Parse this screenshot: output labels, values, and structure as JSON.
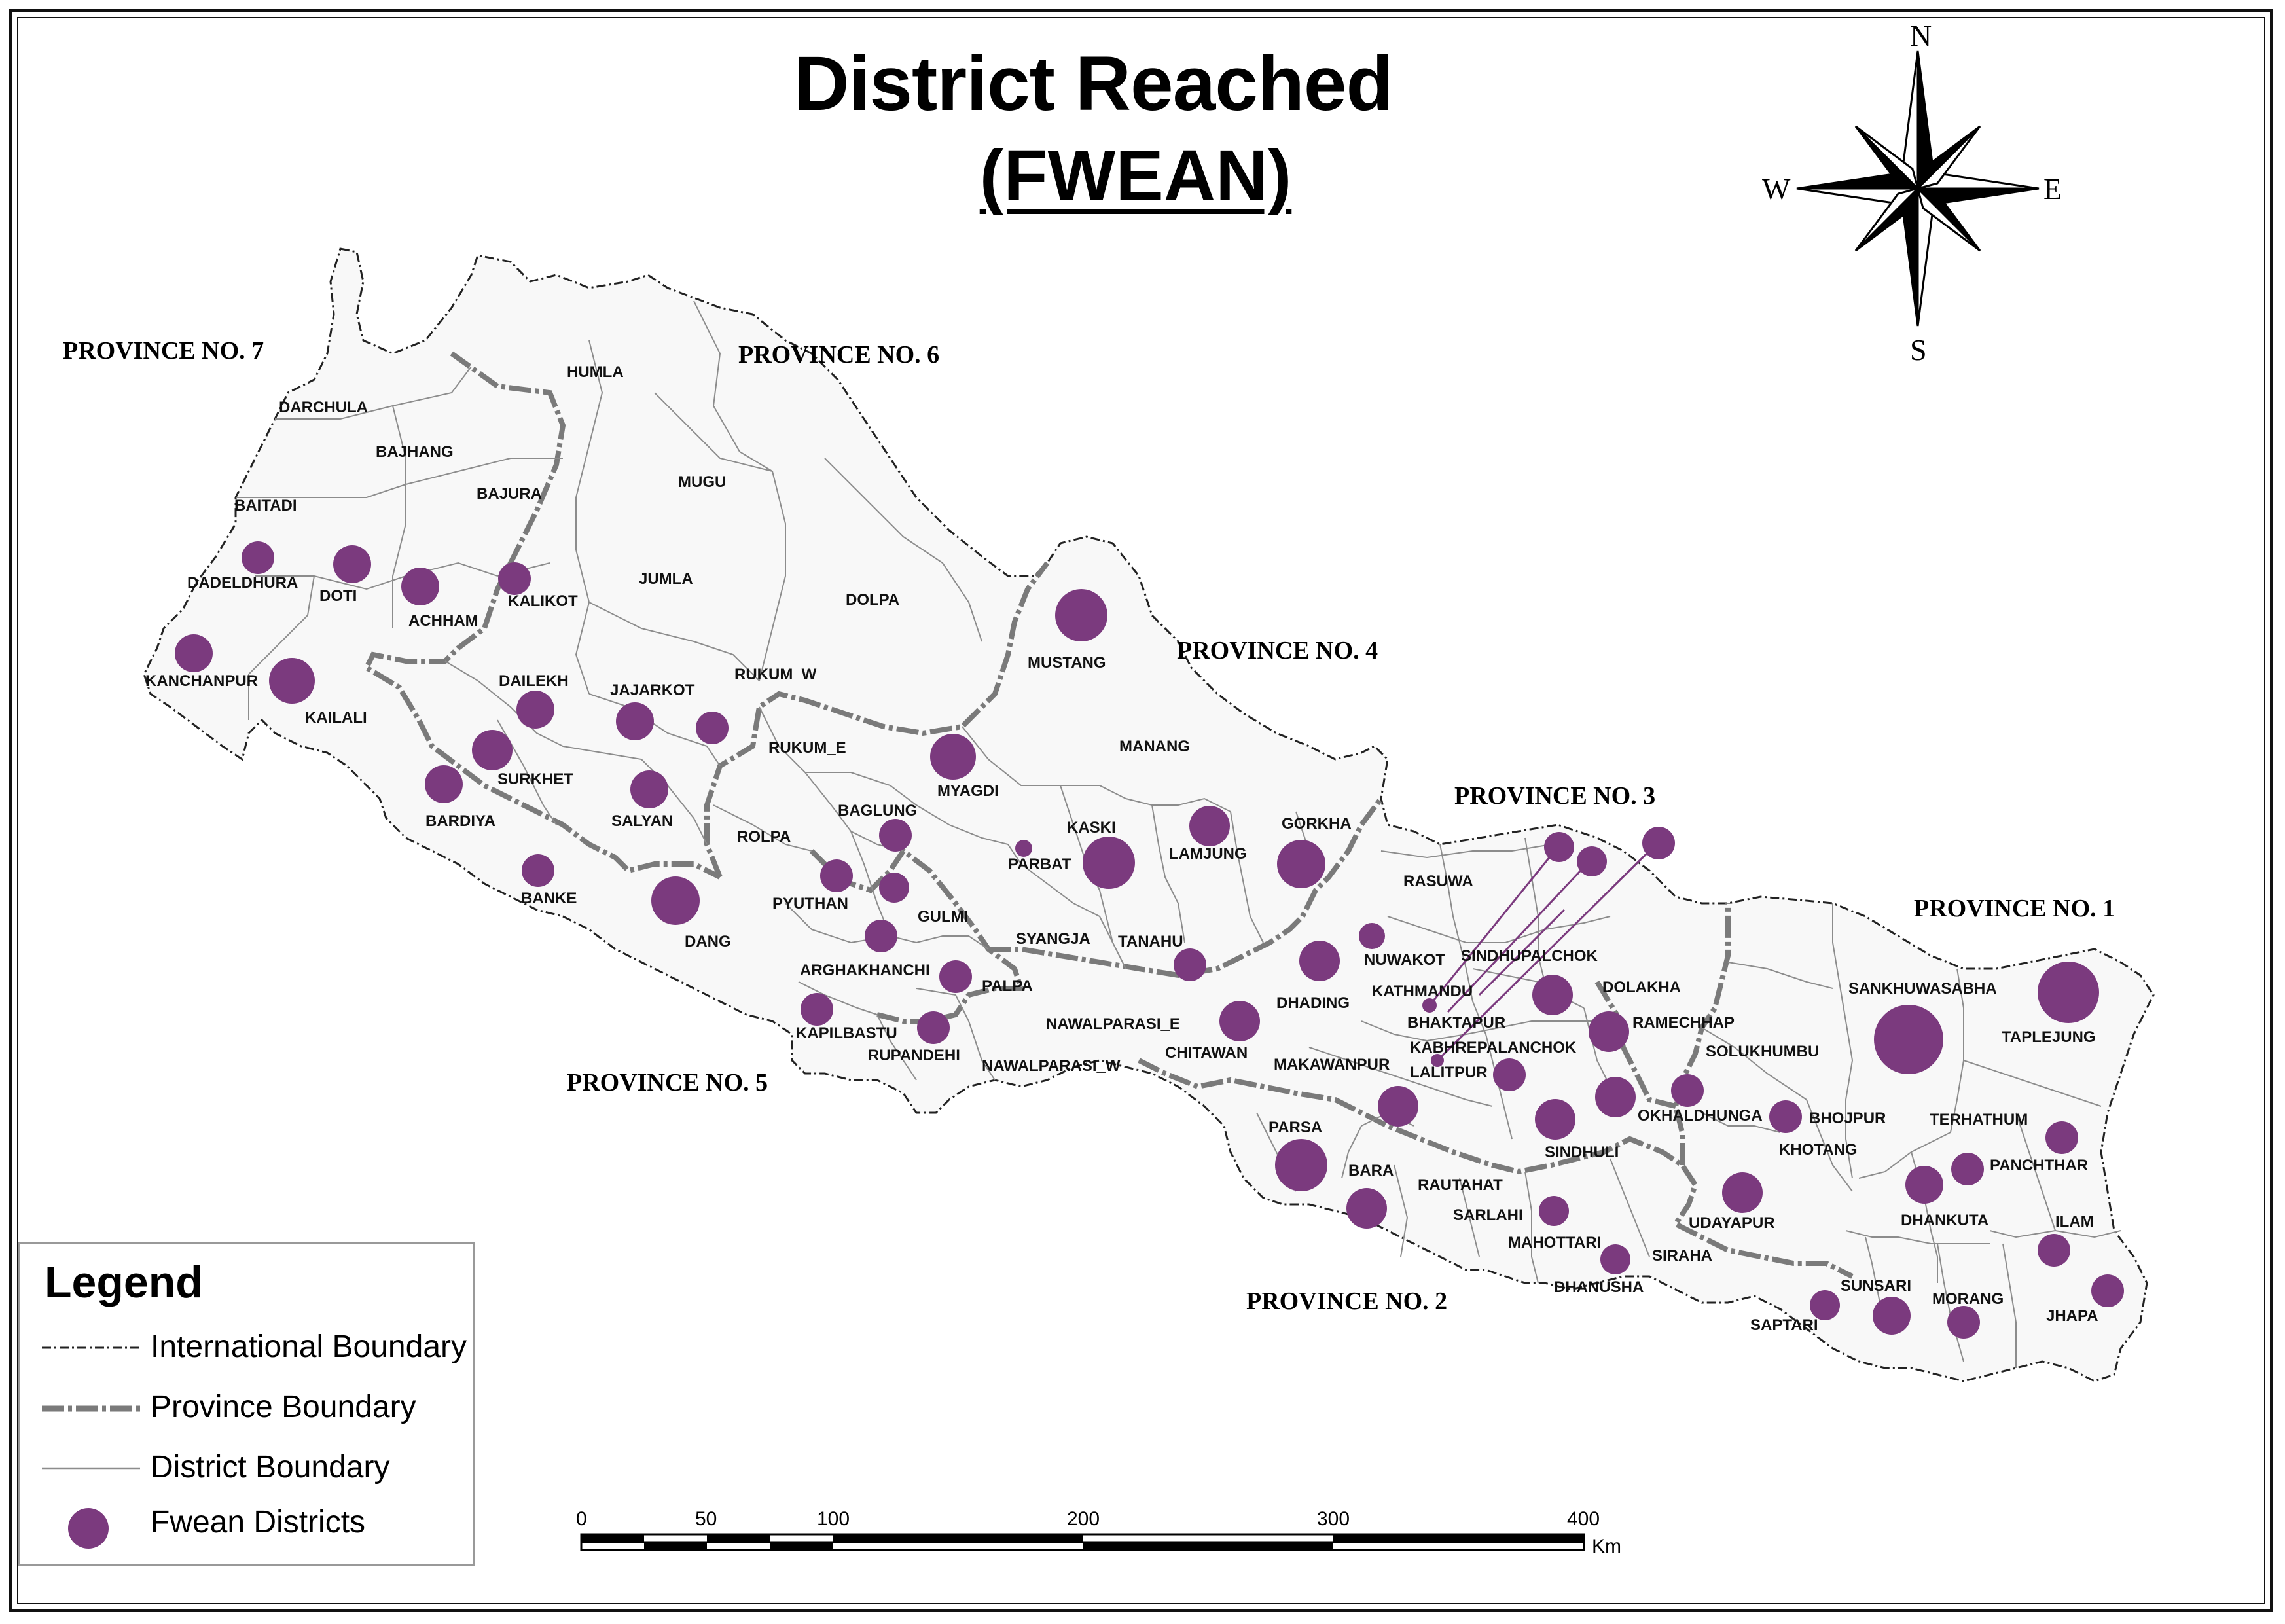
{
  "title": "District Reached",
  "subtitle": "(FWEAN)",
  "compass": {
    "north": "N",
    "south": "S",
    "east": "E",
    "west": "W"
  },
  "provinces": [
    "PROVINCE NO. 7",
    "PROVINCE NO. 6",
    "PROVINCE NO. 4",
    "PROVINCE NO. 3",
    "PROVINCE NO. 1",
    "PROVINCE NO. 5",
    "PROVINCE NO. 2"
  ],
  "districts": [
    "DARCHULA",
    "BAJHANG",
    "BAITADI",
    "HUMLA",
    "BAJURA",
    "MUGU",
    "DADELDHURA",
    "DOTI",
    "ACHHAM",
    "KALIKOT",
    "JUMLA",
    "DOLPA",
    "KANCHANPUR",
    "KAILALI",
    "DAILEKH",
    "JAJARKOT",
    "RUKUM_W",
    "MUSTANG",
    "SURKHET",
    "RUKUM_E",
    "MYAGDI",
    "MANANG",
    "BARDIYA",
    "SALYAN",
    "BAGLUNG",
    "KASKI",
    "ROLPA",
    "LAMJUNG",
    "GORKHA",
    "BANKE",
    "PARBAT",
    "PYUTHAN",
    "GULMI",
    "DANG",
    "SYANGJA",
    "TANAHU",
    "RASUWA",
    "NUWAKOT",
    "SINDHUPALCHOK",
    "ARGHAKHANCHI",
    "PALPA",
    "KATHMANDU",
    "DHADING",
    "DOLAKHA",
    "KAPILBASTU",
    "NAWALPARASI_E",
    "BHAKTAPUR",
    "RAMECHHAP",
    "SANKHUWASABHA",
    "TAPLEJUNG",
    "RUPANDEHI",
    "CHITAWAN",
    "KABHREPALANCHOK",
    "SOLUKHUMBU",
    "NAWALPARASI_W",
    "MAKAWANPUR",
    "LALITPUR",
    "OKHALDHUNGA",
    "BHOJPUR",
    "TERHATHUM",
    "PARSA",
    "SINDHULI",
    "KHOTANG",
    "PANCHTHAR",
    "BARA",
    "RAUTAHAT",
    "UDAYAPUR",
    "DHANKUTA",
    "ILAM",
    "SARLAHI",
    "MAHOTTARI",
    "DHANUSHA",
    "SIRAHA",
    "SUNSARI",
    "MORANG",
    "JHAPA",
    "SAPTARI"
  ],
  "legend": {
    "title": "Legend",
    "items": [
      "International Boundary",
      "Province Boundary",
      "District Boundary",
      "Fwean Districts"
    ]
  },
  "scale": {
    "ticks": [
      "0",
      "50",
      "100",
      "200",
      "300",
      "400"
    ],
    "unit": "Km"
  },
  "colors": {
    "marker": "#7b3a7e",
    "land": "#f8f8f8",
    "province_boundary": "#7a7a7a",
    "district_boundary": "#8c8c8c"
  }
}
